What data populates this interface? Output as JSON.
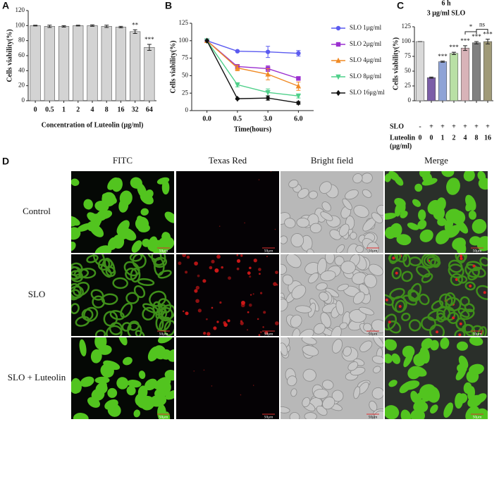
{
  "chart_data": [
    {
      "type": "bar",
      "panel": "A",
      "ylabel": "Cells viability(%)",
      "xlabel": "Concentration of Luteolin (μg/ml)",
      "categories": [
        "0",
        "0.5",
        "1",
        "2",
        "4",
        "8",
        "16",
        "32",
        "64"
      ],
      "values": [
        100,
        99,
        99,
        100,
        100,
        99,
        98,
        92,
        71
      ],
      "errors": [
        0.5,
        1.5,
        1,
        0.5,
        1,
        1.5,
        1,
        2.5,
        4
      ],
      "significance": [
        null,
        null,
        null,
        null,
        null,
        null,
        null,
        "**",
        "***"
      ],
      "color": "#d3d3d3",
      "ylim": [
        0,
        120
      ],
      "yticks": [
        0,
        20,
        40,
        60,
        80,
        100,
        120
      ]
    },
    {
      "type": "line",
      "panel": "B",
      "ylabel": "Cells viability(%)",
      "xlabel": "Time(hours)",
      "categories": [
        "0.0",
        "0.5",
        "3.0",
        "6.0"
      ],
      "series": [
        {
          "name": "SLO 1μg/ml",
          "color": "#5b5bf0",
          "marker": "circle",
          "values": [
            100,
            85,
            84,
            82
          ],
          "errors": [
            0,
            1,
            8,
            4
          ]
        },
        {
          "name": "SLO 2μg/ml",
          "color": "#9b30d0",
          "marker": "square",
          "values": [
            100,
            63,
            60,
            46
          ],
          "errors": [
            0,
            3,
            4,
            2
          ]
        },
        {
          "name": "SLO 4μg/ml",
          "color": "#f08a24",
          "marker": "triangle-up",
          "values": [
            100,
            61,
            52,
            35
          ],
          "errors": [
            0,
            4,
            8,
            6
          ]
        },
        {
          "name": "SLO 8μg/ml",
          "color": "#4fd08a",
          "marker": "triangle-down",
          "values": [
            100,
            37,
            26,
            21
          ],
          "errors": [
            0,
            3,
            5,
            3
          ]
        },
        {
          "name": "SLO 16μg/ml",
          "color": "#111111",
          "marker": "diamond",
          "values": [
            100,
            17,
            18,
            11
          ],
          "errors": [
            0,
            1,
            3,
            2
          ]
        }
      ],
      "ylim": [
        0,
        125
      ],
      "yticks": [
        0,
        25,
        50,
        75,
        100,
        125
      ],
      "legend": "right"
    },
    {
      "type": "bar",
      "panel": "C",
      "title": "6 h",
      "subtitle": "3 μg/ml SLO",
      "ylabel": "Cells viability(%)",
      "row_labels": [
        "SLO",
        "Luteolin",
        "(μg/ml)"
      ],
      "slo": [
        "-",
        "+",
        "+",
        "+",
        "+",
        "+",
        "+"
      ],
      "categories": [
        "0",
        "0",
        "1",
        "2",
        "4",
        "8",
        "16"
      ],
      "values": [
        100,
        39,
        66,
        80,
        89,
        98,
        100
      ],
      "errors": [
        0,
        1,
        1,
        2,
        4,
        2,
        4
      ],
      "colors": [
        "#d9d9d9",
        "#7b5ea8",
        "#8fa3d6",
        "#b9e0a5",
        "#d8b3b8",
        "#808080",
        "#a09a78"
      ],
      "significance": [
        null,
        null,
        "***",
        "***",
        "***",
        "***",
        "***"
      ],
      "brackets": [
        {
          "from": "4",
          "to": "8",
          "text": "*"
        },
        {
          "from": "8",
          "to": "16",
          "text": "ns"
        }
      ],
      "ylim": [
        0,
        125
      ],
      "yticks": [
        0,
        25,
        50,
        75,
        100,
        125
      ]
    }
  ],
  "figure": {
    "panel": "D",
    "columns": [
      "FITC",
      "Texas Red",
      "Bright field",
      "Merge"
    ],
    "rows": [
      "Control",
      "SLO",
      "SLO + Luteolin"
    ],
    "scale_bar": "50μm"
  }
}
